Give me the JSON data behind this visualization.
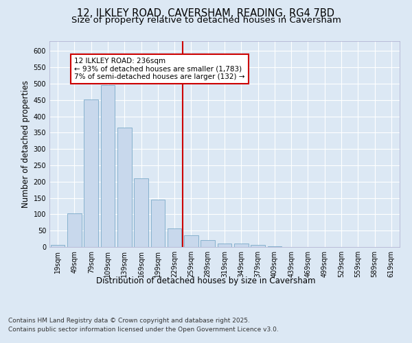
{
  "title1": "12, ILKLEY ROAD, CAVERSHAM, READING, RG4 7BD",
  "title2": "Size of property relative to detached houses in Caversham",
  "xlabel": "Distribution of detached houses by size in Caversham",
  "ylabel": "Number of detached properties",
  "bar_labels": [
    "19sqm",
    "49sqm",
    "79sqm",
    "109sqm",
    "139sqm",
    "169sqm",
    "199sqm",
    "229sqm",
    "259sqm",
    "289sqm",
    "319sqm",
    "349sqm",
    "379sqm",
    "409sqm",
    "439sqm",
    "469sqm",
    "499sqm",
    "529sqm",
    "559sqm",
    "589sqm",
    "619sqm"
  ],
  "bar_values": [
    6,
    103,
    452,
    495,
    365,
    210,
    145,
    57,
    35,
    21,
    11,
    10,
    6,
    2,
    1,
    1,
    0,
    0,
    0,
    0,
    1
  ],
  "bar_color": "#c8d8ec",
  "bar_edge_color": "#7aaac8",
  "vline_x": 7.5,
  "vline_color": "#cc0000",
  "annotation_title": "12 ILKLEY ROAD: 236sqm",
  "annotation_line1": "← 93% of detached houses are smaller (1,783)",
  "annotation_line2": "7% of semi-detached houses are larger (132) →",
  "annotation_box_color": "#ffffff",
  "annotation_box_edge": "#cc0000",
  "ylim": [
    0,
    630
  ],
  "yticks": [
    0,
    50,
    100,
    150,
    200,
    250,
    300,
    350,
    400,
    450,
    500,
    550,
    600
  ],
  "background_color": "#dce8f4",
  "plot_bg_color": "#dce8f4",
  "grid_color": "#ffffff",
  "footer1": "Contains HM Land Registry data © Crown copyright and database right 2025.",
  "footer2": "Contains public sector information licensed under the Open Government Licence v3.0.",
  "title_fontsize": 10.5,
  "subtitle_fontsize": 9.5,
  "axis_label_fontsize": 8.5,
  "tick_fontsize": 7,
  "annotation_fontsize": 7.5,
  "footer_fontsize": 6.5
}
